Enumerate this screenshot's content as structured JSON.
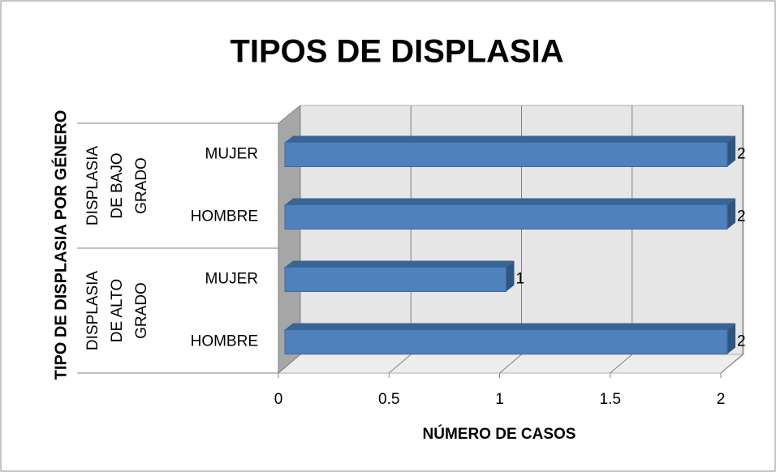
{
  "chart_data": {
    "type": "bar",
    "orientation": "horizontal",
    "title": "TIPOS DE DISPLASIA",
    "xlabel": "NÚMERO DE CASOS",
    "ylabel": "TIPO  DE DISPLASIA POR GÉNERO",
    "categories": [
      "HOMBRE",
      "MUJER",
      "HOMBRE",
      "MUJER"
    ],
    "groups": [
      [
        "DISPLASIA",
        "DE ALTO",
        "GRADO"
      ],
      [
        "DISPLASIA",
        "DE BAJO",
        "GRADO"
      ]
    ],
    "values": [
      2,
      1,
      2,
      2
    ],
    "color": "#4f81bd",
    "xlim": [
      0,
      2
    ],
    "xticks": [
      0,
      0.5,
      1,
      1.5,
      2
    ],
    "grid": true
  }
}
